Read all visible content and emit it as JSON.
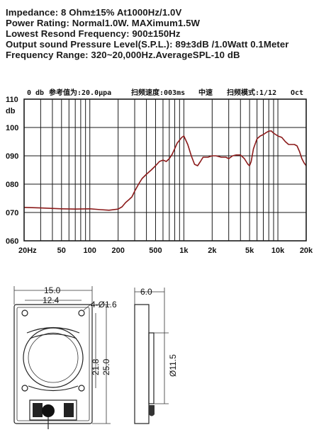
{
  "specs": [
    "Impedance: 8 Ohm±15%  At1000Hz/1.0V",
    "Power Rating: Normal1.0W. MAXimum1.5W",
    "Lowest Resond Frequency: 900±150Hz",
    "Output sound Pressure Level(S.P.L.): 89±3dB /1.0Watt 0.1Meter",
    "Frequency Range: 320~20,000Hz.AverageSPL-10 dB"
  ],
  "chart_header": {
    "zero_db": "0 db",
    "ref": "参考值为:20.0μpa",
    "speed": "扫频速度:003ms",
    "mode": "中速",
    "scan": "扫频模式:1/12",
    "oct": "Oct"
  },
  "chart_data": {
    "type": "line",
    "title": "",
    "xscale": "log",
    "xlim": [
      20,
      20000
    ],
    "ylim": [
      60,
      110
    ],
    "ylabel": "db",
    "grid": true,
    "ytick_labels": [
      "110",
      "100",
      "090",
      "080",
      "070",
      "060"
    ],
    "ytick_values": [
      110,
      100,
      90,
      80,
      70,
      60
    ],
    "xtick_labels": [
      "20Hz",
      "50",
      "100",
      "200",
      "500",
      "1k",
      "2k",
      "5k",
      "10k",
      "20k"
    ],
    "xtick_values": [
      20,
      50,
      100,
      200,
      500,
      1000,
      2000,
      5000,
      10000,
      20000
    ],
    "series": [
      {
        "color": "#8b1a1a",
        "x": [
          20,
          30,
          50,
          70,
          100,
          130,
          160,
          200,
          220,
          240,
          260,
          280,
          300,
          330,
          360,
          400,
          450,
          500,
          550,
          600,
          650,
          700,
          750,
          800,
          850,
          900,
          950,
          1000,
          1100,
          1200,
          1300,
          1400,
          1500,
          1600,
          1800,
          2000,
          2200,
          2500,
          2800,
          3000,
          3300,
          3600,
          4000,
          4400,
          4800,
          5000,
          5200,
          5500,
          6000,
          6500,
          7000,
          7500,
          8000,
          8500,
          9000,
          10000,
          11000,
          12000,
          13000,
          14000,
          15000,
          16000,
          17000,
          18000,
          19000,
          20000
        ],
        "y": [
          71.8,
          71.6,
          71.3,
          71.2,
          71.3,
          71.0,
          70.8,
          71.2,
          72.0,
          73.5,
          74.5,
          75.5,
          77.5,
          80.0,
          82.0,
          83.5,
          85.0,
          86.5,
          88.0,
          88.5,
          88.0,
          89.0,
          90.5,
          92.5,
          94.5,
          95.5,
          96.5,
          97.0,
          94.0,
          90.0,
          87.0,
          86.5,
          88.0,
          89.5,
          89.5,
          90.0,
          90.0,
          89.5,
          89.5,
          89.0,
          90.0,
          90.3,
          90.3,
          89.0,
          87.0,
          86.5,
          88.0,
          92.5,
          96.0,
          97.0,
          97.5,
          98.2,
          98.7,
          98.8,
          98.0,
          97.0,
          96.5,
          95.0,
          94.0,
          94.0,
          94.0,
          93.5,
          91.5,
          89.0,
          87.5,
          86.5
        ]
      }
    ]
  },
  "dimensions": {
    "width_outer": "15.0",
    "width_inner": "12.4",
    "holes": "4-Ø1.6",
    "height_inner": "21.8",
    "height_outer": "25.0",
    "depth": "6.0",
    "diameter": "Ø11.5"
  }
}
